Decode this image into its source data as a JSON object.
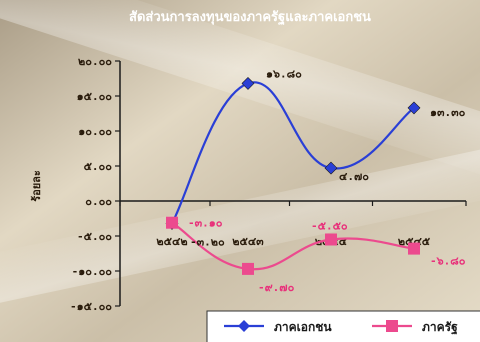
{
  "chart_data": {
    "type": "line",
    "title": "สัดส่วนการลงทุนของภาครัฐและภาคเอกชน",
    "ylabel": "ร้อยละ",
    "xlabel": "",
    "categories": [
      "๒๕๔๒",
      "๒๕๔๓",
      "๒๕๔๔",
      "๒๕๔๕"
    ],
    "ylim": [
      -15,
      20
    ],
    "yticks": [
      20,
      15,
      10,
      5,
      0,
      -5,
      -10,
      -15
    ],
    "ytick_labels": [
      "๒๐.๐๐",
      "๑๕.๐๐",
      "๑๐.๐๐",
      "๕.๐๐",
      "๐.๐๐",
      "-๕.๐๐",
      "-๑๐.๐๐",
      "-๑๕.๐๐"
    ],
    "series": [
      {
        "name": "ภาคเอกชน",
        "color": "#2a3fd6",
        "marker": "diamond",
        "values": [
          -3.2,
          16.8,
          4.7,
          13.3
        ],
        "labels": [
          "-๓.๒๐",
          "๑๖.๘๐",
          "๔.๗๐",
          "๑๓.๓๐"
        ]
      },
      {
        "name": "ภาครัฐ",
        "color": "#ec4a8e",
        "marker": "square",
        "values": [
          -3.1,
          -9.7,
          -5.5,
          -6.8
        ],
        "labels": [
          "-๓.๑๐",
          "-๙.๗๐",
          "-๕.๕๐",
          "-๖.๘๐"
        ]
      }
    ],
    "grid": false,
    "legend": "bottom-right"
  }
}
